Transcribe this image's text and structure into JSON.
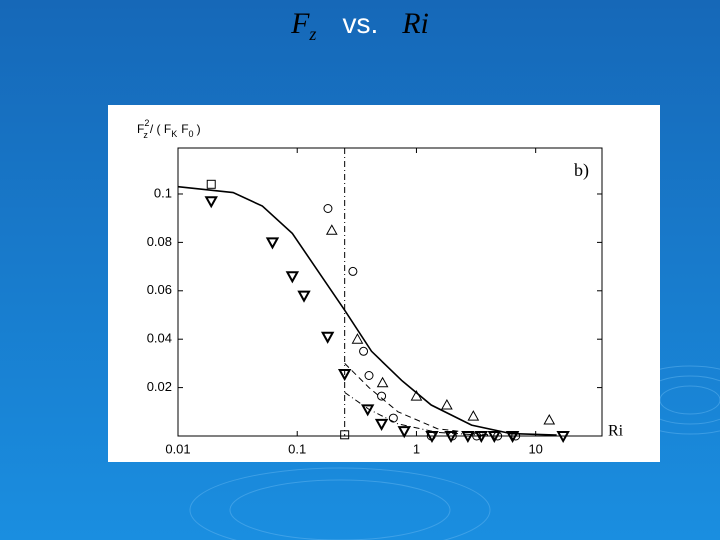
{
  "slide_title": {
    "symbol": "F",
    "subscript": "z",
    "connector": "vs.",
    "variable": "Ri"
  },
  "chart_data": {
    "type": "scatter",
    "ylabel_parts": [
      "F",
      "2",
      "z",
      "/ ( F",
      "K",
      "F",
      "0",
      ")"
    ],
    "annotations": [
      "b)",
      "Ri"
    ],
    "xscale": "log",
    "xlim": [
      0.01,
      36
    ],
    "xticks": [
      0.01,
      0.1,
      1,
      10
    ],
    "ylim": [
      0,
      0.119
    ],
    "yticks": [
      0.02,
      0.04,
      0.06,
      0.08,
      0.1
    ],
    "vline": 0.25,
    "lines": [
      {
        "style": "solid",
        "color": "#000000",
        "x": [
          0.01,
          0.029,
          0.051,
          0.091,
          0.16,
          0.25,
          0.42,
          0.75,
          1.33,
          2.9,
          6.2,
          15
        ],
        "values": [
          0.103,
          0.1006,
          0.095,
          0.0837,
          0.066,
          0.052,
          0.035,
          0.023,
          0.0128,
          0.0045,
          0.001,
          0.0004
        ]
      },
      {
        "style": "dashed",
        "color": "#000000",
        "x": [
          0.25,
          0.4,
          0.7,
          1.5,
          4
        ],
        "values": [
          0.03,
          0.02,
          0.01,
          0.003,
          0.0005
        ]
      },
      {
        "style": "dashdot",
        "color": "#000000",
        "x": [
          0.25,
          0.4,
          0.7,
          1.5,
          4
        ],
        "values": [
          0.018,
          0.011,
          0.005,
          0.0015,
          0.0002
        ]
      }
    ],
    "series": [
      {
        "marker": "square",
        "color": "#000000",
        "x": [
          0.019,
          0.25
        ],
        "values": [
          0.104,
          0.0005
        ]
      },
      {
        "marker": "circle",
        "color": "#000000",
        "x": [
          0.181,
          0.293,
          0.36,
          0.4,
          0.51,
          0.64,
          1.33,
          2.0,
          3.2,
          4.8,
          6.8
        ],
        "values": [
          0.094,
          0.068,
          0.035,
          0.025,
          0.0165,
          0.0074,
          0,
          0,
          0,
          0,
          0
        ]
      },
      {
        "marker": "triangle-up",
        "color": "#000000",
        "x": [
          0.195,
          0.32,
          0.52,
          1.0,
          1.8,
          3.0,
          13.0
        ],
        "values": [
          0.085,
          0.04,
          0.022,
          0.0165,
          0.0128,
          0.0082,
          0.0066
        ]
      },
      {
        "marker": "triangle-down",
        "color": "#000000",
        "x": [
          0.019,
          0.062,
          0.091,
          0.114,
          0.18,
          0.25,
          0.39,
          0.51,
          0.79,
          1.35,
          1.95,
          2.7,
          3.5,
          4.5,
          6.4,
          17
        ],
        "values": [
          0.097,
          0.08,
          0.066,
          0.058,
          0.041,
          0.0256,
          0.011,
          0.005,
          0.002,
          0,
          0,
          0,
          0,
          0,
          0,
          0
        ]
      }
    ]
  }
}
